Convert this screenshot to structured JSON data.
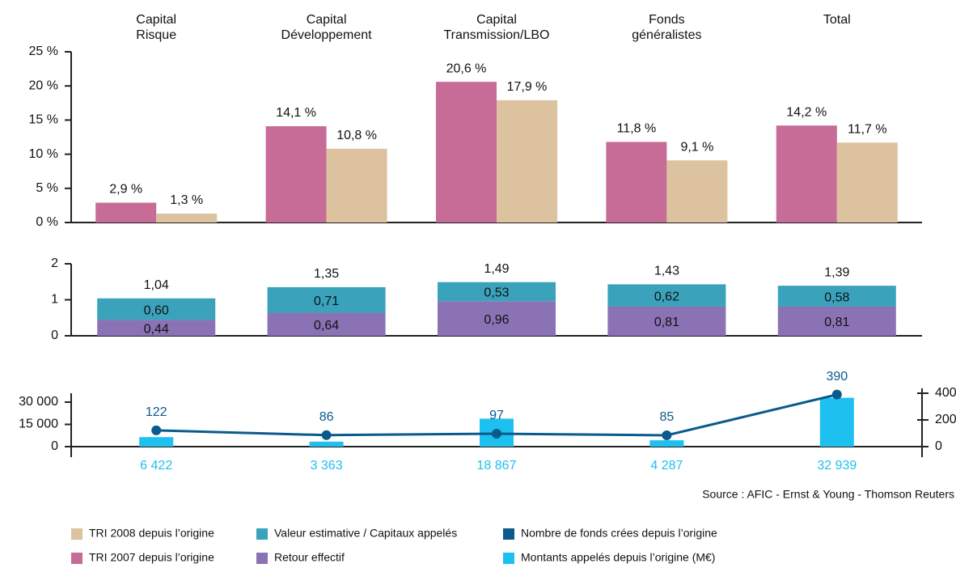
{
  "chart_data": [
    {
      "type": "bar",
      "categories": [
        [
          "Capital",
          "Risque"
        ],
        [
          "Capital",
          "Développement"
        ],
        [
          "Capital",
          "Transmission/LBO"
        ],
        [
          "Fonds",
          "généralistes"
        ],
        [
          "Total"
        ]
      ],
      "series": [
        {
          "name": "TRI 2007 depuis l’origine",
          "color": "#c76b97",
          "values": [
            2.9,
            14.1,
            20.6,
            11.8,
            14.2
          ],
          "value_labels": [
            "2,9 %",
            "14,1 %",
            "20,6 %",
            "11,8 %",
            "14,2 %"
          ]
        },
        {
          "name": "TRI 2008 depuis l’origine",
          "color": "#dcc29f",
          "values": [
            1.3,
            10.8,
            17.9,
            9.1,
            11.7
          ],
          "value_labels": [
            "1,3 %",
            "10,8 %",
            "17,9 %",
            "9,1 %",
            "11,7 %"
          ]
        }
      ],
      "ylim": [
        0,
        25
      ],
      "yticks": [
        {
          "value": 0,
          "label": "0 %"
        },
        {
          "value": 5,
          "label": "5 %"
        },
        {
          "value": 10,
          "label": "10 %"
        },
        {
          "value": 15,
          "label": "15 %"
        },
        {
          "value": 20,
          "label": "20 %"
        },
        {
          "value": 25,
          "label": "25 %"
        }
      ]
    },
    {
      "type": "stacked_bar",
      "series": [
        {
          "name": "Retour effectif",
          "color": "#8a72b5",
          "values": [
            0.44,
            0.64,
            0.96,
            0.81,
            0.81
          ],
          "value_labels": [
            "0,44",
            "0,64",
            "0,96",
            "0,81",
            "0,81"
          ]
        },
        {
          "name": "Valeur estimative / Capitaux appelés",
          "color": "#3aa3bb",
          "values": [
            0.6,
            0.71,
            0.53,
            0.62,
            0.58
          ],
          "value_labels": [
            "0,60",
            "0,71",
            "0,53",
            "0,62",
            "0,58"
          ]
        }
      ],
      "totals": [
        1.04,
        1.35,
        1.49,
        1.43,
        1.39
      ],
      "total_labels": [
        "1,04",
        "1,35",
        "1,49",
        "1,43",
        "1,39"
      ],
      "ylim": [
        0,
        2
      ],
      "yticks": [
        0,
        1,
        2
      ]
    },
    {
      "type": "bar_line",
      "series": [
        {
          "name": "Montants appelés depuis l’origine (M€)",
          "color": "#1ec0f0",
          "values": [
            6422,
            3363,
            18867,
            4287,
            32939
          ],
          "value_labels": [
            "6 422",
            "3 363",
            "18 867",
            "4 287",
            "32 939"
          ]
        },
        {
          "name": "Nombre de fonds crées depuis l’origine",
          "color": "#0b5a8c",
          "axis": "y2",
          "values": [
            122,
            86,
            97,
            85,
            390
          ]
        }
      ],
      "ylim": [
        0,
        36000
      ],
      "yticks": [
        0,
        {
          "value": 15000,
          "label": "15 000"
        },
        {
          "value": 30000,
          "label": "30 000"
        }
      ],
      "y2lim": [
        0,
        400
      ],
      "y2ticks": [
        0,
        200,
        400
      ]
    }
  ],
  "source": "Source : AFIC - Ernst & Young - Thomson Reuters"
}
